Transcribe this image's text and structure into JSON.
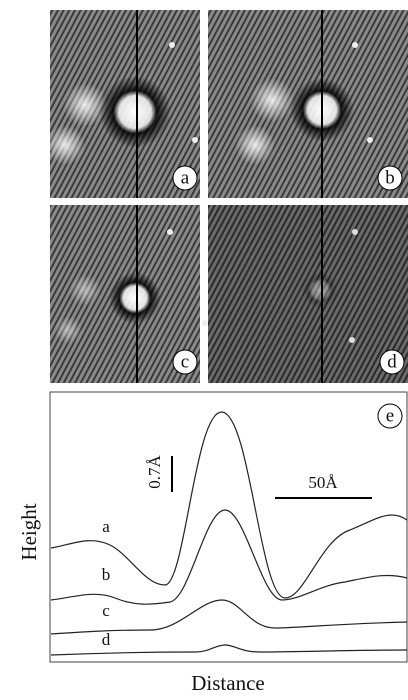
{
  "panels": [
    {
      "label": "a"
    },
    {
      "label": "b"
    },
    {
      "label": "c"
    },
    {
      "label": "d"
    }
  ],
  "profile": {
    "label": "e",
    "curves": [
      "a",
      "b",
      "c",
      "d"
    ],
    "y_label": "Height",
    "x_label": "Distance",
    "height_scale": "0.7Å",
    "distance_scale": "50Å"
  }
}
